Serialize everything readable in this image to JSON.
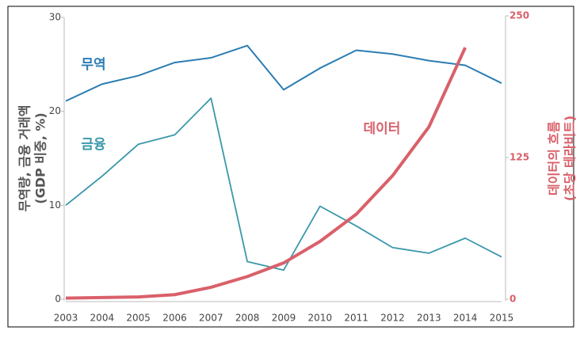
{
  "chart_data": {
    "type": "line",
    "categories": [
      "2003",
      "2004",
      "2005",
      "2006",
      "2007",
      "2008",
      "2009",
      "2010",
      "2011",
      "2012",
      "2013",
      "2014",
      "2015"
    ],
    "series": [
      {
        "name": "무역",
        "color": "#2b7db3",
        "values": [
          21.1,
          22.9,
          23.8,
          25.2,
          25.7,
          27.0,
          22.3,
          24.6,
          26.5,
          26.1,
          25.4,
          24.9,
          23.0
        ]
      },
      {
        "name": "금융",
        "color": "#3a98aa",
        "values": [
          10.0,
          13.1,
          16.5,
          17.5,
          21.4,
          4.0,
          3.1,
          9.9,
          7.8,
          5.5,
          4.9,
          6.5,
          4.5
        ]
      },
      {
        "name": "데이터",
        "color": "#d9606a",
        "axis": "y2",
        "values": [
          1,
          1.5,
          2,
          4,
          10.5,
          20,
          32,
          51,
          75,
          109,
          152,
          222,
          null
        ]
      }
    ],
    "ylabel": [
      "무역량, 금융 거래액",
      "(GDP 비중, %)"
    ],
    "y2label": [
      "데이터의 흐름",
      "(초당 테라비트)"
    ],
    "ylim": [
      0,
      30
    ],
    "yticks": [
      0,
      10,
      20,
      30
    ],
    "y2lim": [
      0,
      250
    ],
    "y2ticks": [
      0,
      125,
      250
    ]
  }
}
